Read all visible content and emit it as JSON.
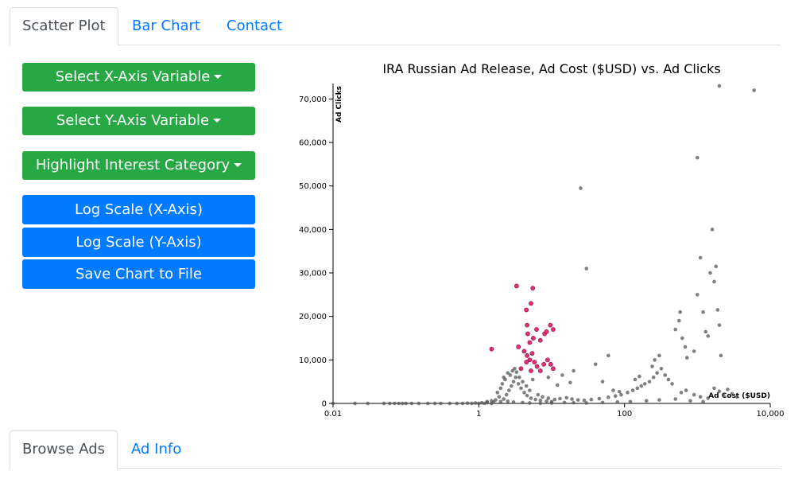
{
  "tabs_top": [
    {
      "label": "Scatter Plot",
      "active": true
    },
    {
      "label": "Bar Chart",
      "active": false
    },
    {
      "label": "Contact",
      "active": false
    }
  ],
  "controls": {
    "x_axis_dropdown": "Select X-Axis Variable",
    "y_axis_dropdown": "Select Y-Axis Variable",
    "highlight_dropdown": "Highlight Interest Category",
    "log_x": "Log Scale (X-Axis)",
    "log_y": "Log Scale (Y-Axis)",
    "save": "Save Chart to File"
  },
  "tabs_bottom": [
    {
      "label": "Browse Ads",
      "active": true
    },
    {
      "label": "Ad Info",
      "active": false
    }
  ],
  "colors": {
    "green_button": "#28a745",
    "blue_button": "#007bff",
    "base_point": "#555555",
    "highlight_point": "#e0307a"
  },
  "chart_data": {
    "type": "scatter",
    "title": "IRA Russian Ad Release, Ad Cost ($USD) vs. Ad Clicks",
    "xlabel": "Ad Cost ($USD)",
    "ylabel": "Ad Clicks",
    "x_scale": "log",
    "xlim": [
      0.01,
      10000
    ],
    "ylim": [
      0,
      73000
    ],
    "x_ticks": [
      0.01,
      1,
      100,
      10000
    ],
    "x_tick_labels": [
      "0.01",
      "1",
      "100",
      "10,000"
    ],
    "y_ticks": [
      0,
      10000,
      20000,
      30000,
      40000,
      50000,
      60000,
      70000
    ],
    "y_tick_labels": [
      "0",
      "10,000",
      "20,000",
      "30,000",
      "40,000",
      "50,000",
      "60,000",
      "70,000"
    ],
    "grid": false,
    "series": [
      {
        "highlight": false,
        "points": [
          [
            0.01,
            0
          ],
          [
            0.02,
            0
          ],
          [
            0.03,
            0
          ],
          [
            0.05,
            0
          ],
          [
            0.06,
            0
          ],
          [
            0.07,
            0
          ],
          [
            0.08,
            0
          ],
          [
            0.09,
            0
          ],
          [
            0.1,
            0
          ],
          [
            0.12,
            0
          ],
          [
            0.15,
            0
          ],
          [
            0.2,
            0
          ],
          [
            0.25,
            0
          ],
          [
            0.3,
            0
          ],
          [
            0.4,
            0
          ],
          [
            0.5,
            0
          ],
          [
            0.6,
            0
          ],
          [
            0.8,
            0
          ],
          [
            1,
            0
          ],
          [
            1.2,
            0
          ],
          [
            1.5,
            0
          ],
          [
            0.7,
            50
          ],
          [
            0.9,
            100
          ],
          [
            1.1,
            150
          ],
          [
            1.3,
            200
          ],
          [
            1.6,
            300
          ],
          [
            2,
            400
          ],
          [
            2.5,
            500
          ],
          [
            3,
            300
          ],
          [
            4,
            200
          ],
          [
            5,
            100
          ],
          [
            7,
            50
          ],
          [
            10,
            100
          ],
          [
            15,
            200
          ],
          [
            20,
            150
          ],
          [
            30,
            100
          ],
          [
            50,
            200
          ],
          [
            80,
            300
          ],
          [
            120,
            400
          ],
          [
            200,
            600
          ],
          [
            300,
            800
          ],
          [
            500,
            1000
          ],
          [
            800,
            600
          ],
          [
            1200,
            400
          ],
          [
            2.2,
            1000
          ],
          [
            2.4,
            2000
          ],
          [
            2.6,
            3000
          ],
          [
            2.8,
            4000
          ],
          [
            3.0,
            5000
          ],
          [
            3.2,
            6000
          ],
          [
            3.5,
            4500
          ],
          [
            3.8,
            3500
          ],
          [
            4.2,
            2500
          ],
          [
            4.6,
            1800
          ],
          [
            5.2,
            1200
          ],
          [
            6,
            900
          ],
          [
            7,
            700
          ],
          [
            8.5,
            500
          ],
          [
            10,
            400
          ],
          [
            2.3,
            5500
          ],
          [
            2.5,
            7000
          ],
          [
            2.7,
            6500
          ],
          [
            2.9,
            7500
          ],
          [
            3.1,
            8000
          ],
          [
            3.3,
            7200
          ],
          [
            3.6,
            6000
          ],
          [
            4,
            5000
          ],
          [
            4.5,
            4000
          ],
          [
            5,
            3000
          ],
          [
            1.8,
            2500
          ],
          [
            2.0,
            3500
          ],
          [
            2.1,
            4500
          ],
          [
            2.2,
            6000
          ],
          [
            1.9,
            1500
          ],
          [
            1.7,
            800
          ],
          [
            1.5,
            600
          ],
          [
            1.3,
            400
          ],
          [
            6.5,
            2000
          ],
          [
            7.5,
            1500
          ],
          [
            9,
            1200
          ],
          [
            11,
            900
          ],
          [
            13,
            1100
          ],
          [
            16,
            1300
          ],
          [
            19,
            1000
          ],
          [
            23,
            800
          ],
          [
            28,
            700
          ],
          [
            35,
            900
          ],
          [
            45,
            1100
          ],
          [
            60,
            1400
          ],
          [
            75,
            1700
          ],
          [
            90,
            2000
          ],
          [
            110,
            2500
          ],
          [
            130,
            3000
          ],
          [
            150,
            3500
          ],
          [
            170,
            4000
          ],
          [
            190,
            4500
          ],
          [
            220,
            5000
          ],
          [
            250,
            6000
          ],
          [
            280,
            7000
          ],
          [
            320,
            8000
          ],
          [
            360,
            6500
          ],
          [
            400,
            5500
          ],
          [
            450,
            4500
          ],
          [
            600,
            2500
          ],
          [
            700,
            3000
          ],
          [
            900,
            2000
          ],
          [
            1100,
            1500
          ],
          [
            1400,
            1200
          ],
          [
            1700,
            3500
          ],
          [
            2000,
            2800
          ],
          [
            2300,
            1800
          ],
          [
            2600,
            3200
          ],
          [
            3000,
            2200
          ],
          [
            3500,
            1500
          ],
          [
            140,
            5500
          ],
          [
            160,
            6200
          ],
          [
            240,
            8500
          ],
          [
            260,
            10000
          ],
          [
            300,
            11000
          ],
          [
            500,
            17000
          ],
          [
            560,
            19000
          ],
          [
            580,
            21000
          ],
          [
            620,
            15000
          ],
          [
            680,
            13000
          ],
          [
            720,
            10500
          ],
          [
            900,
            12000
          ],
          [
            1000,
            25000
          ],
          [
            1100,
            33500
          ],
          [
            1200,
            21000
          ],
          [
            1300,
            16500
          ],
          [
            1400,
            15500
          ],
          [
            1500,
            30000
          ],
          [
            1700,
            28000
          ],
          [
            1800,
            31500
          ],
          [
            1900,
            21500
          ],
          [
            2000,
            18000
          ],
          [
            2100,
            11000
          ],
          [
            1600,
            40000
          ],
          [
            1000,
            56500
          ],
          [
            2000,
            73000
          ],
          [
            6000,
            72000
          ],
          [
            25,
            49500
          ],
          [
            30,
            31000
          ],
          [
            60,
            11000
          ],
          [
            40,
            9000
          ],
          [
            20,
            7500
          ],
          [
            14,
            6500
          ],
          [
            9,
            6000
          ],
          [
            5.5,
            5500
          ],
          [
            18,
            4800
          ],
          [
            12,
            4200
          ],
          [
            50,
            5000
          ],
          [
            70,
            3000
          ],
          [
            85,
            2700
          ]
        ]
      },
      {
        "highlight": true,
        "points": [
          [
            1.5,
            12500
          ],
          [
            3.3,
            27000
          ],
          [
            5.2,
            23000
          ],
          [
            5.5,
            26500
          ],
          [
            4.5,
            21500
          ],
          [
            4.6,
            18000
          ],
          [
            4.7,
            16000
          ],
          [
            5.0,
            14000
          ],
          [
            5.6,
            15000
          ],
          [
            6.2,
            17000
          ],
          [
            7.0,
            14500
          ],
          [
            8.0,
            16000
          ],
          [
            8.5,
            16500
          ],
          [
            9.6,
            18000
          ],
          [
            10.5,
            17000
          ],
          [
            3.5,
            13000
          ],
          [
            4.2,
            12000
          ],
          [
            4.6,
            11000
          ],
          [
            5.0,
            10000
          ],
          [
            5.4,
            11500
          ],
          [
            5.8,
            9500
          ],
          [
            6.3,
            8500
          ],
          [
            7.0,
            7500
          ],
          [
            7.8,
            9000
          ],
          [
            8.8,
            10000
          ],
          [
            9.7,
            9000
          ],
          [
            10.5,
            8000
          ],
          [
            3.8,
            8000
          ],
          [
            4.5,
            9500
          ],
          [
            5.2,
            7500
          ]
        ]
      }
    ]
  }
}
